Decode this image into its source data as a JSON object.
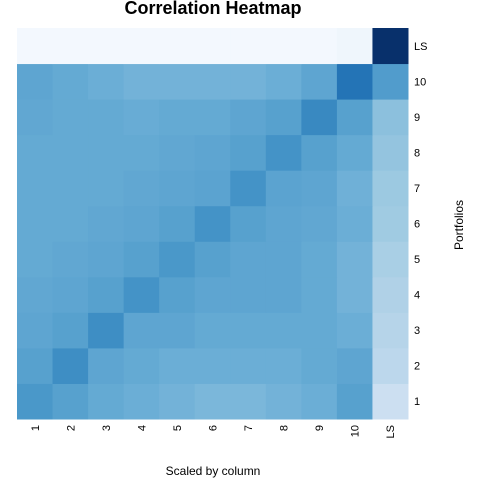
{
  "chart_data": {
    "type": "heatmap",
    "title": "Correlation Heatmap",
    "xlabel": "Scaled by column",
    "ylabel": "Portfolios",
    "x_categories": [
      "1",
      "2",
      "3",
      "4",
      "5",
      "6",
      "7",
      "8",
      "9",
      "10",
      "LS"
    ],
    "y_categories": [
      "1",
      "2",
      "3",
      "4",
      "5",
      "6",
      "7",
      "8",
      "9",
      "10",
      "LS"
    ],
    "color_low": "#f7fbff",
    "color_high": "#08306b",
    "grid": false,
    "values": [
      [
        0.6,
        0.56,
        0.52,
        0.5,
        0.48,
        0.46,
        0.46,
        0.48,
        0.5,
        0.56,
        0.22
      ],
      [
        0.56,
        0.64,
        0.54,
        0.52,
        0.5,
        0.5,
        0.5,
        0.5,
        0.52,
        0.54,
        0.28
      ],
      [
        0.54,
        0.56,
        0.64,
        0.54,
        0.54,
        0.52,
        0.52,
        0.52,
        0.52,
        0.5,
        0.3
      ],
      [
        0.53,
        0.54,
        0.56,
        0.62,
        0.56,
        0.54,
        0.54,
        0.54,
        0.52,
        0.48,
        0.32
      ],
      [
        0.52,
        0.53,
        0.54,
        0.56,
        0.6,
        0.56,
        0.54,
        0.54,
        0.52,
        0.48,
        0.34
      ],
      [
        0.52,
        0.52,
        0.53,
        0.54,
        0.56,
        0.62,
        0.56,
        0.54,
        0.53,
        0.5,
        0.37
      ],
      [
        0.52,
        0.52,
        0.52,
        0.53,
        0.54,
        0.55,
        0.62,
        0.55,
        0.54,
        0.49,
        0.38
      ],
      [
        0.52,
        0.52,
        0.52,
        0.52,
        0.53,
        0.54,
        0.56,
        0.62,
        0.56,
        0.52,
        0.4
      ],
      [
        0.53,
        0.52,
        0.52,
        0.51,
        0.52,
        0.52,
        0.54,
        0.56,
        0.66,
        0.56,
        0.42
      ],
      [
        0.54,
        0.52,
        0.5,
        0.48,
        0.48,
        0.48,
        0.48,
        0.5,
        0.54,
        0.74,
        0.58
      ],
      [
        0.02,
        0.02,
        0.02,
        0.02,
        0.02,
        0.02,
        0.02,
        0.02,
        0.02,
        0.04,
        1.0
      ]
    ]
  }
}
